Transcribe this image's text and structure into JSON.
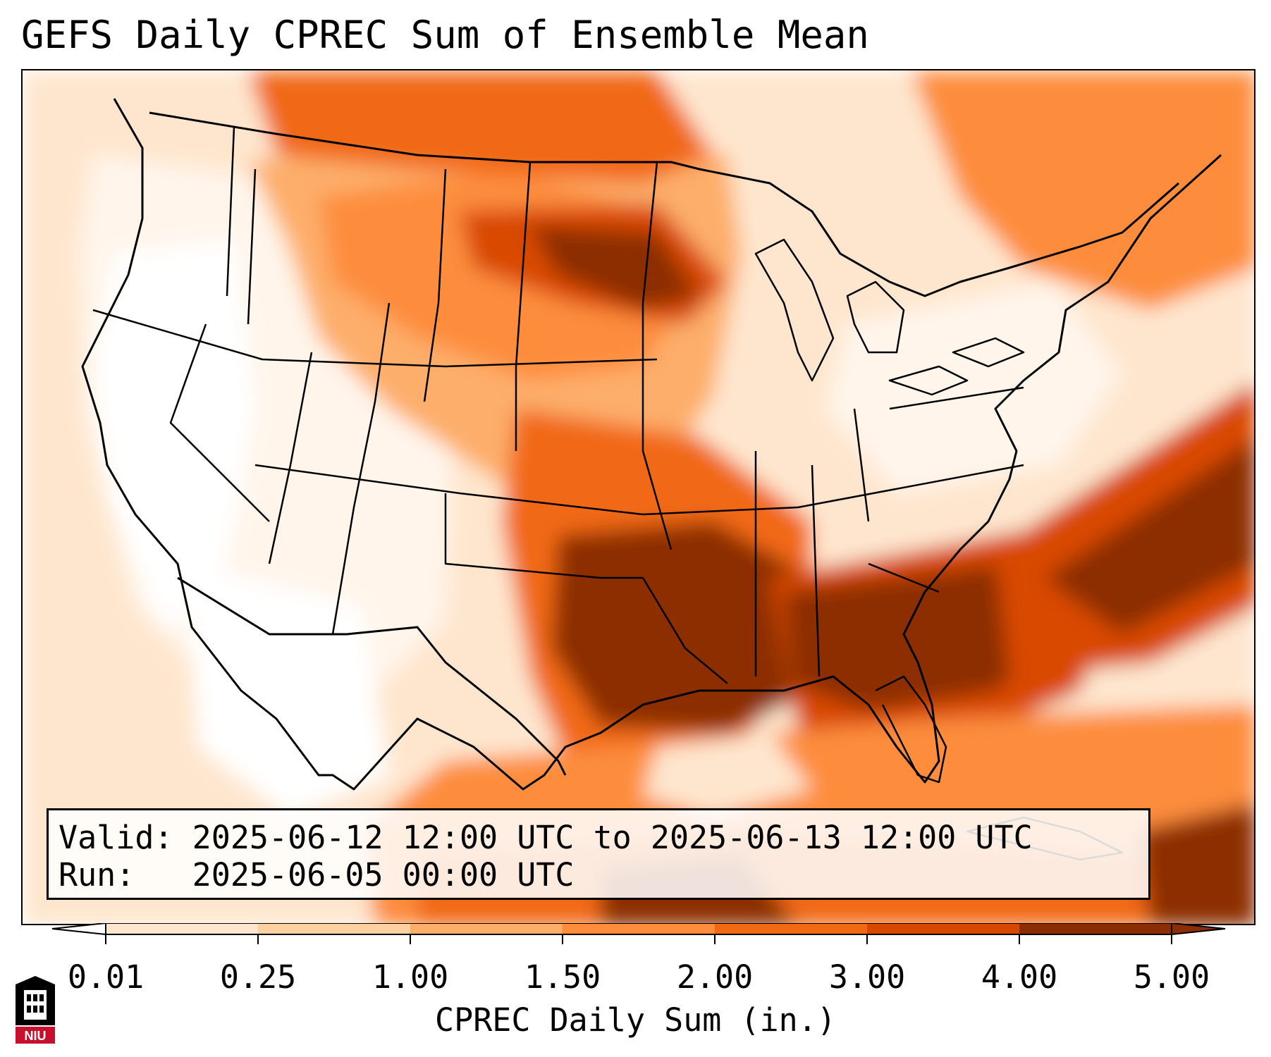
{
  "title": "GEFS Daily CPREC Sum of Ensemble Mean",
  "info": {
    "valid_line": "Valid: 2025-06-12 12:00 UTC to 2025-06-13 12:00 UTC",
    "run_line": "Run:   2025-06-05 00:00 UTC"
  },
  "colorbar": {
    "label": "CPREC Daily Sum (in.)",
    "ticks": [
      "0.01",
      "0.25",
      "1.00",
      "1.50",
      "2.00",
      "3.00",
      "4.00",
      "5.00"
    ],
    "colors": [
      "#fff5eb",
      "#fee6ce",
      "#fdd0a2",
      "#fdae6b",
      "#fd8d3c",
      "#f16913",
      "#d94801",
      "#8c2d04"
    ],
    "under_color": "#ffffff",
    "over_color": "#8c2d04",
    "extend": "both"
  },
  "map": {
    "region": "Contiguous United States",
    "outline_color": "#000000"
  },
  "logo": {
    "text": "NIU",
    "colors": {
      "red": "#c8102e",
      "black": "#000000"
    }
  }
}
